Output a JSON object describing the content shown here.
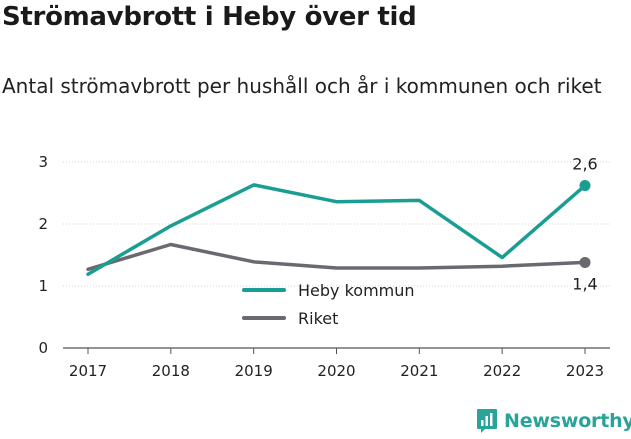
{
  "title": "Strömavbrott i Heby över tid",
  "subtitle": "Antal strömavbrott per hushåll och år i kommunen och riket",
  "brand": "Newsworthy",
  "chart_data": {
    "type": "line",
    "title": "Strömavbrott i Heby över tid",
    "subtitle": "Antal strömavbrott per hushåll och år i kommunen och riket",
    "x": [
      "2017",
      "2018",
      "2019",
      "2020",
      "2021",
      "2022",
      "2023"
    ],
    "ylim": [
      0,
      3
    ],
    "yticks": [
      0,
      1,
      2,
      3
    ],
    "grid": true,
    "legend_position": "center",
    "series": [
      {
        "name": "Heby kommun",
        "color": "#1a9e93",
        "values": [
          1.19,
          1.97,
          2.63,
          2.36,
          2.38,
          1.46,
          2.62
        ],
        "end_label": "2,6"
      },
      {
        "name": "Riket",
        "color": "#6b6970",
        "values": [
          1.27,
          1.67,
          1.39,
          1.29,
          1.29,
          1.32,
          1.38
        ],
        "end_label": "1,4"
      }
    ]
  }
}
